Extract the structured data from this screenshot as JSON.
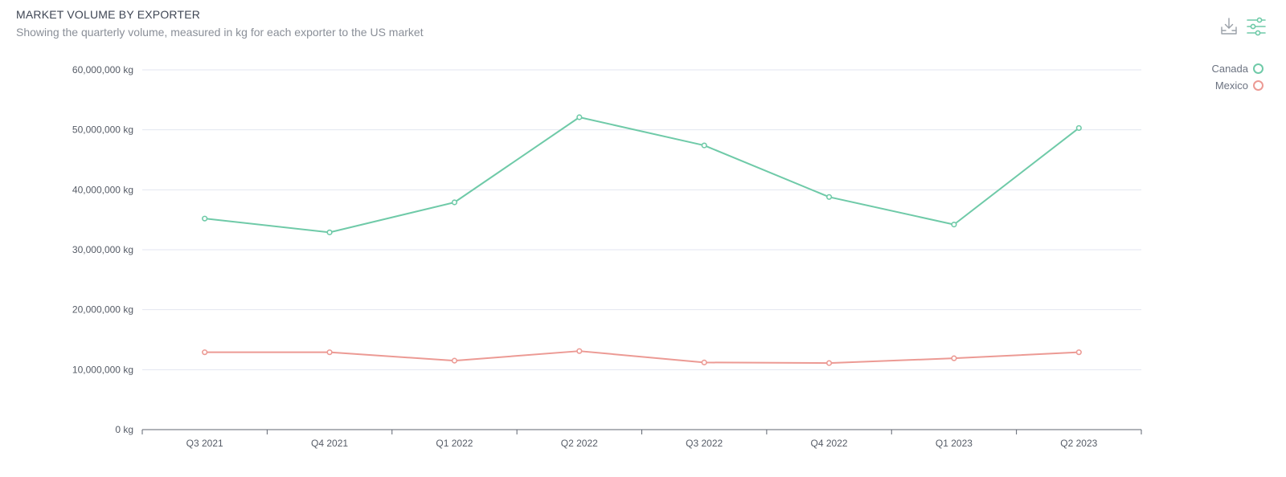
{
  "header": {
    "title": "MARKET VOLUME BY EXPORTER",
    "subtitle": "Showing the quarterly volume, measured in kg for each exporter to the US market"
  },
  "toolbar": {
    "download_icon": "download-tray-icon",
    "filter_icon": "sliders-icon"
  },
  "colors": {
    "canada": "#6fcaa8",
    "mexico": "#ec9a94",
    "grid": "#e3e6f0",
    "axis": "#5f6570"
  },
  "chart_data": {
    "type": "line",
    "title": "MARKET VOLUME BY EXPORTER",
    "subtitle": "Showing the quarterly volume, measured in kg for each exporter to the US market",
    "categories": [
      "Q3 2021",
      "Q4 2021",
      "Q1 2022",
      "Q2 2022",
      "Q3 2022",
      "Q4 2022",
      "Q1 2023",
      "Q2 2023"
    ],
    "series": [
      {
        "name": "Canada",
        "color": "#6fcaa8",
        "values": [
          35200000,
          32900000,
          37900000,
          52100000,
          47400000,
          38800000,
          34200000,
          50300000
        ]
      },
      {
        "name": "Mexico",
        "color": "#ec9a94",
        "values": [
          12900000,
          12900000,
          11500000,
          13100000,
          11200000,
          11100000,
          11900000,
          12900000
        ]
      }
    ],
    "y_ticks": [
      "0 kg",
      "10,000,000 kg",
      "20,000,000 kg",
      "30,000,000 kg",
      "40,000,000 kg",
      "50,000,000 kg",
      "60,000,000 kg"
    ],
    "ylim": [
      0,
      60000000
    ],
    "y_unit": "kg",
    "grid": true,
    "legend_position": "top-right",
    "xlabel": "",
    "ylabel": ""
  }
}
